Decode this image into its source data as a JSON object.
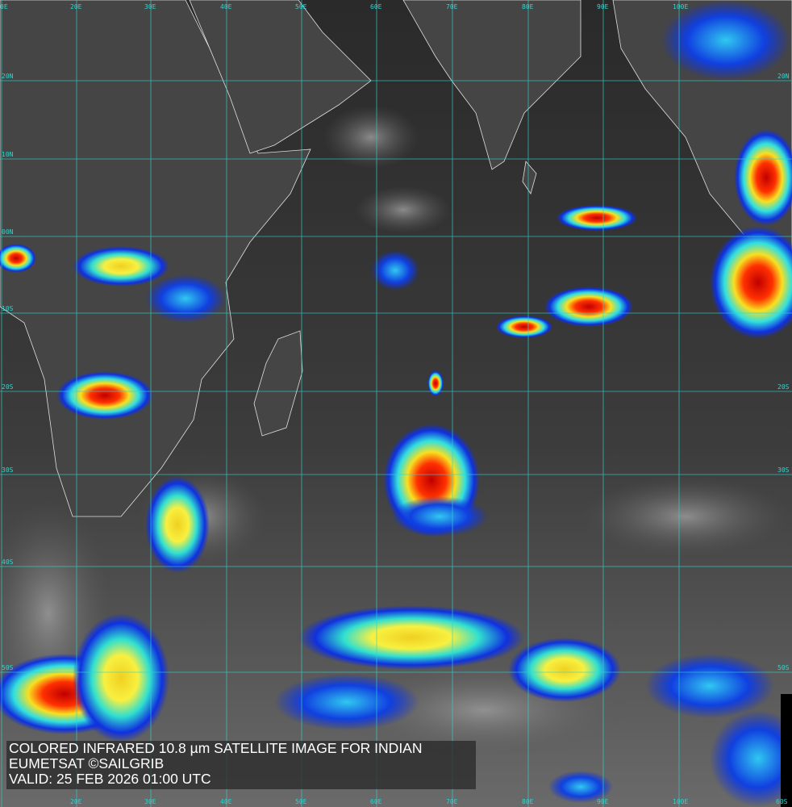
{
  "caption": {
    "line1": "COLORED INFRARED 10.8 µm SATELLITE IMAGE FOR INDIAN",
    "line2": "EUMETSAT ©SAILGRIB",
    "line3": "VALID:  25 FEB 2026 01:00 UTC"
  },
  "grid": {
    "top_labels": [
      "0E",
      "20E",
      "30E",
      "40E",
      "50E",
      "60E",
      "70E",
      "80E",
      "90E",
      "100E"
    ],
    "bottom_labels": [
      "20E",
      "30E",
      "40E",
      "50E",
      "60E",
      "70E",
      "80E",
      "90E",
      "100E",
      "60S"
    ],
    "left_labels": [
      "20N",
      "10N",
      "00N",
      "10S",
      "20S",
      "30S",
      "40S",
      "50S"
    ],
    "right_labels": [
      "20N",
      "20S",
      "30S",
      "50S"
    ],
    "line_color": "#2fd6d0"
  },
  "colors": {
    "ocean": "#2a2a2a",
    "land": "#4a4a4a",
    "coast": "#e0e0e0",
    "cold_top": "#d01010",
    "warm_top": "#f0e020",
    "mid": "#20e0e0",
    "low": "#1030e0"
  }
}
